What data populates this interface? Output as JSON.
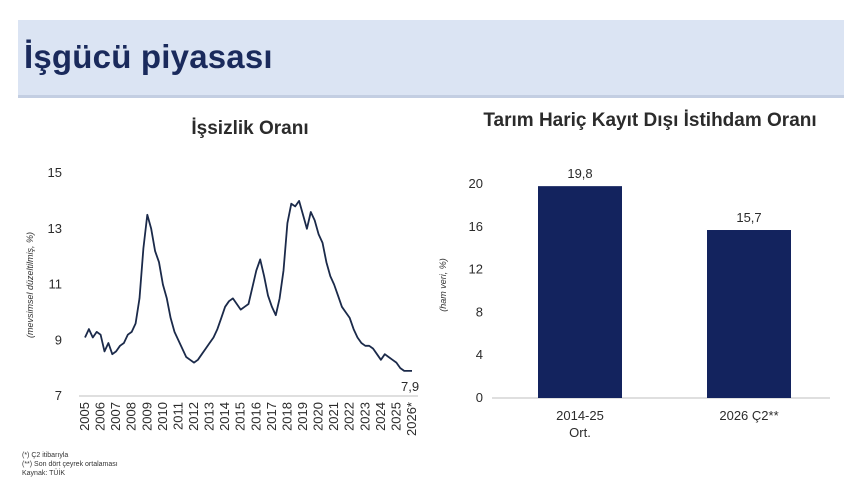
{
  "header": {
    "title": "İşgücü piyasası"
  },
  "chart_data": [
    {
      "type": "line",
      "title": "İşsizlik Oranı",
      "ylabel": "(mevsimsel düzeltilmiş, %)",
      "ylim": [
        7,
        15
      ],
      "yticks": [
        "7",
        "9",
        "11",
        "13",
        "15"
      ],
      "categories": [
        "2005",
        "2006",
        "2007",
        "2008",
        "2009",
        "2010",
        "2011",
        "2012",
        "2013",
        "2014",
        "2015",
        "2016",
        "2017",
        "2018",
        "2019",
        "2020",
        "2021",
        "2022",
        "2023",
        "2024",
        "2025",
        "2026*"
      ],
      "x": [
        2005.0,
        2005.25,
        2005.5,
        2005.75,
        2006.0,
        2006.25,
        2006.5,
        2006.75,
        2007.0,
        2007.25,
        2007.5,
        2007.75,
        2008.0,
        2008.25,
        2008.5,
        2008.75,
        2009.0,
        2009.25,
        2009.5,
        2009.75,
        2010.0,
        2010.25,
        2010.5,
        2010.75,
        2011.0,
        2011.25,
        2011.5,
        2011.75,
        2012.0,
        2012.25,
        2012.5,
        2012.75,
        2013.0,
        2013.25,
        2013.5,
        2013.75,
        2014.0,
        2014.25,
        2014.5,
        2014.75,
        2015.0,
        2015.25,
        2015.5,
        2015.75,
        2016.0,
        2016.25,
        2016.5,
        2016.75,
        2017.0,
        2017.25,
        2017.5,
        2017.75,
        2018.0,
        2018.25,
        2018.5,
        2018.75,
        2019.0,
        2019.25,
        2019.5,
        2019.75,
        2020.0,
        2020.25,
        2020.5,
        2020.75,
        2021.0,
        2021.25,
        2021.5,
        2021.75,
        2022.0,
        2022.25,
        2022.5,
        2022.75,
        2023.0,
        2023.25,
        2023.5,
        2023.75,
        2024.0,
        2024.25,
        2024.5,
        2024.75,
        2025.0,
        2025.25,
        2025.5,
        2025.75,
        2026.0
      ],
      "values": [
        9.1,
        9.4,
        9.1,
        9.3,
        9.2,
        8.6,
        8.9,
        8.5,
        8.6,
        8.8,
        8.9,
        9.2,
        9.3,
        9.6,
        10.5,
        12.3,
        13.5,
        13.0,
        12.2,
        11.8,
        11.0,
        10.5,
        9.8,
        9.3,
        9.0,
        8.7,
        8.4,
        8.3,
        8.2,
        8.3,
        8.5,
        8.7,
        8.9,
        9.1,
        9.4,
        9.8,
        10.2,
        10.4,
        10.5,
        10.3,
        10.1,
        10.2,
        10.3,
        10.9,
        11.5,
        11.9,
        11.3,
        10.6,
        10.2,
        9.9,
        10.5,
        11.5,
        13.2,
        13.9,
        13.8,
        14.0,
        13.5,
        13.0,
        13.6,
        13.3,
        12.8,
        12.5,
        11.8,
        11.3,
        11.0,
        10.6,
        10.2,
        10.0,
        9.8,
        9.4,
        9.1,
        8.9,
        8.8,
        8.8,
        8.7,
        8.5,
        8.3,
        8.5,
        8.4,
        8.3,
        8.2,
        8.0,
        7.9,
        7.9,
        7.9
      ],
      "annotation": "7,9"
    },
    {
      "type": "bar",
      "title": "Tarım Hariç Kayıt Dışı İstihdam Oranı",
      "ylabel": "(ham veri, %)",
      "ylim": [
        0,
        20
      ],
      "yticks": [
        "0",
        "4",
        "8",
        "12",
        "16",
        "20"
      ],
      "categories": [
        "2014-25 Ort.",
        "2026 Ç2**"
      ],
      "category_lines": [
        [
          "2014-25",
          "Ort."
        ],
        [
          "2026 Ç2**"
        ]
      ],
      "values": [
        19.8,
        15.7
      ],
      "labels": [
        "19,8",
        "15,7"
      ],
      "color": "#13235e"
    }
  ],
  "footnotes": [
    "(*) Ç2 itibarıyla",
    "(**) Son dört çeyrek ortalaması",
    "Kaynak: TÜİK"
  ]
}
